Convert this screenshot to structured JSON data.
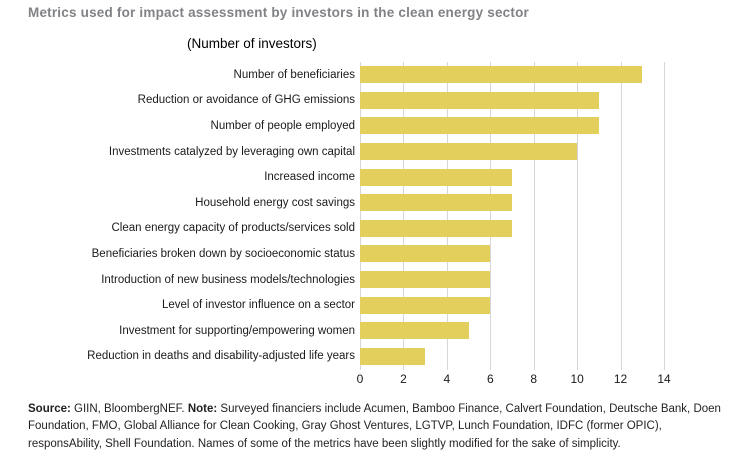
{
  "chart_data": {
    "type": "bar",
    "orientation": "horizontal",
    "title": "Metrics used for impact assessment by investors in the clean energy sector",
    "subtitle": "(Number of investors)",
    "categories": [
      "Number of beneficiaries",
      "Reduction or avoidance of GHG emissions",
      "Number of people employed",
      "Investments catalyzed by leveraging own capital",
      "Increased income",
      "Household energy cost savings",
      "Clean energy capacity of products/services sold",
      "Beneficiaries broken down by socioeconomic status",
      "Introduction of new business models/technologies",
      "Level of investor influence on a sector",
      "Investment for supporting/empowering women",
      "Reduction in deaths and disability-adjusted life years"
    ],
    "values": [
      13,
      11,
      11,
      10,
      7,
      7,
      7,
      6,
      6,
      6,
      5,
      3
    ],
    "xlim": [
      0,
      14
    ],
    "xticks": [
      0,
      2,
      4,
      6,
      8,
      10,
      12,
      14
    ],
    "grid": true,
    "legend": false,
    "bar_color": "#e3cf5c",
    "gridline_color": "#d6d6d6",
    "title_color": "#808285"
  },
  "footer": {
    "source_label": "Source:",
    "source_text": "GIIN, BloombergNEF.",
    "note_label": "Note:",
    "note_text": "Surveyed financiers include Acumen, Bamboo Finance, Calvert Foundation, Deutsche Bank, Doen Foundation, FMO, Global Alliance for Clean Cooking, Gray Ghost Ventures, LGTVP, Lunch Foundation, IDFC (former OPIC), responsAbility, Shell Foundation. Names of some of the metrics have been slightly modified for the sake of simplicity."
  }
}
